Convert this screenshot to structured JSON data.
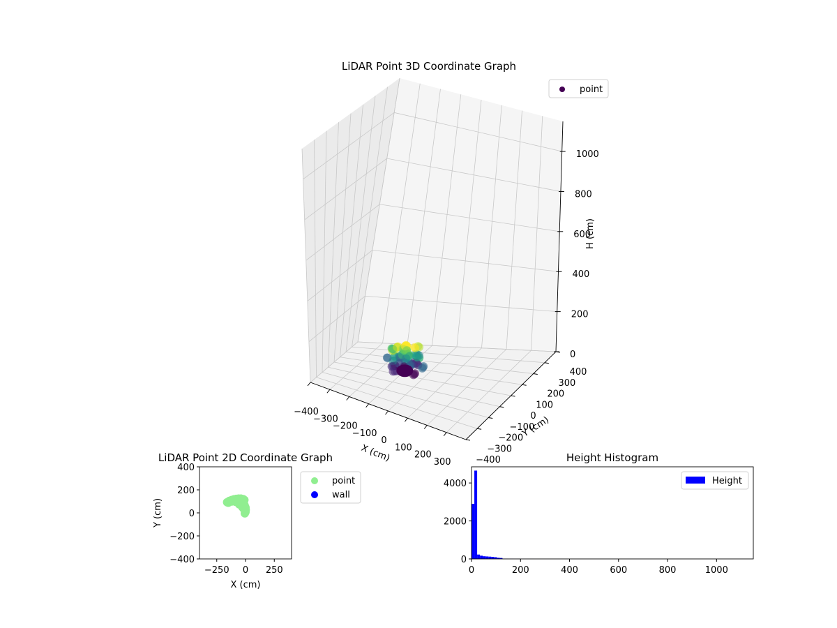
{
  "chart_data": [
    {
      "type": "scatter",
      "projection": "3d",
      "title": "LiDAR Point 3D Coordinate Graph",
      "xlabel": "X (cm)",
      "ylabel": "Y (cm)",
      "zlabel": "H (cm)",
      "xlim": [
        -400,
        400
      ],
      "ylim": [
        -400,
        400
      ],
      "zlim": [
        1150,
        0
      ],
      "x_ticks": [
        -400,
        -300,
        -200,
        -100,
        0,
        100,
        200,
        300
      ],
      "y_ticks": [
        -400,
        -300,
        -200,
        -100,
        0,
        100,
        200,
        300,
        400
      ],
      "z_ticks": [
        0,
        200,
        400,
        600,
        800,
        1000
      ],
      "grid": true,
      "legend": {
        "position": "top-right",
        "entries": [
          {
            "label": "point",
            "color": "#440154"
          }
        ]
      },
      "colormap": "viridis",
      "cluster_summary": {
        "x_range": [
          -200,
          0
        ],
        "y_range": [
          -20,
          130
        ],
        "h_range": [
          0,
          120
        ]
      }
    },
    {
      "type": "scatter",
      "title": "LiDAR Point 2D Coordinate Graph",
      "xlabel": "X (cm)",
      "ylabel": "Y (cm)",
      "xlim": [
        -400,
        400
      ],
      "ylim": [
        -400,
        400
      ],
      "x_ticks": [
        -250,
        0,
        250
      ],
      "y_ticks": [
        -400,
        -200,
        0,
        200,
        400
      ],
      "legend": {
        "position": "right",
        "entries": [
          {
            "label": "point",
            "color": "#90ee90"
          },
          {
            "label": "wall",
            "color": "#0000ff"
          }
        ]
      },
      "series": [
        {
          "name": "point",
          "color": "#90ee90",
          "points": [
            [
              -160,
              92
            ],
            [
              -140,
              104
            ],
            [
              -120,
              112
            ],
            [
              -100,
              118
            ],
            [
              -80,
              122
            ],
            [
              -60,
              124
            ],
            [
              -40,
              124
            ],
            [
              -20,
              120
            ],
            [
              -10,
              112
            ],
            [
              -25,
              98
            ],
            [
              -15,
              84
            ],
            [
              -8,
              66
            ],
            [
              0,
              46
            ],
            [
              2,
              26
            ],
            [
              0,
              8
            ],
            [
              -6,
              -4
            ],
            [
              -30,
              52
            ],
            [
              -55,
              74
            ],
            [
              -85,
              96
            ],
            [
              -120,
              98
            ],
            [
              -150,
              88
            ],
            [
              -110,
              108
            ],
            [
              -70,
              108
            ],
            [
              -45,
              90
            ],
            [
              -20,
              40
            ]
          ]
        },
        {
          "name": "wall",
          "color": "#0000ff",
          "points": []
        }
      ]
    },
    {
      "type": "bar",
      "subtype": "histogram",
      "title": "Height Histogram",
      "xlim": [
        0,
        1150
      ],
      "ylim": [
        0,
        4850
      ],
      "x_ticks": [
        0,
        200,
        400,
        600,
        800,
        1000
      ],
      "y_ticks": [
        0,
        2000,
        4000
      ],
      "legend": {
        "position": "top-right",
        "entries": [
          {
            "label": "Height",
            "color": "#0000ff"
          }
        ]
      },
      "bin_width": 11.5,
      "series": [
        {
          "name": "Height",
          "color": "#0000ff",
          "values": [
            2900,
            4650,
            230,
            170,
            140,
            130,
            120,
            110,
            90,
            60,
            50,
            10,
            8,
            6,
            5,
            4,
            3,
            3,
            2,
            2,
            2,
            2,
            1,
            1,
            1,
            1,
            1,
            1
          ]
        }
      ]
    }
  ]
}
